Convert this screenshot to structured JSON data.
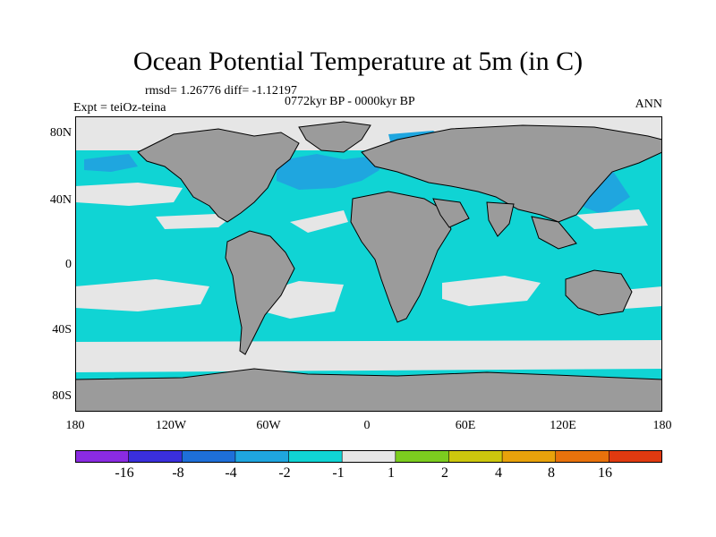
{
  "title": "Ocean Potential Temperature at 5m (in C)",
  "stats": "rmsd= 1.26776 diff= -1.12197",
  "period": "0772kyr BP - 0000kyr BP",
  "experiment": "Expt = teiOz-teina",
  "season": "ANN",
  "lat_labels": [
    "80N",
    "40N",
    "0",
    "40S",
    "80S"
  ],
  "lon_labels": [
    "180",
    "120W",
    "60W",
    "0",
    "60E",
    "120E",
    "180"
  ],
  "colorbar": {
    "colors": [
      "#8a2be2",
      "#3a2fdc",
      "#1e6fd9",
      "#1fa6df",
      "#10d4d4",
      "#e6e6e6",
      "#7ccd1f",
      "#ccc70e",
      "#e8a20b",
      "#e8720c",
      "#e03a10"
    ],
    "labels": [
      "-16",
      "-8",
      "-4",
      "-2",
      "-1",
      "1",
      "2",
      "4",
      "8",
      "16"
    ]
  },
  "legend_colors": {
    "land": "#9b9b9b",
    "cyan": "#10d4d4",
    "light_blue": "#1fa6df",
    "near_zero": "#e6e6e6"
  }
}
